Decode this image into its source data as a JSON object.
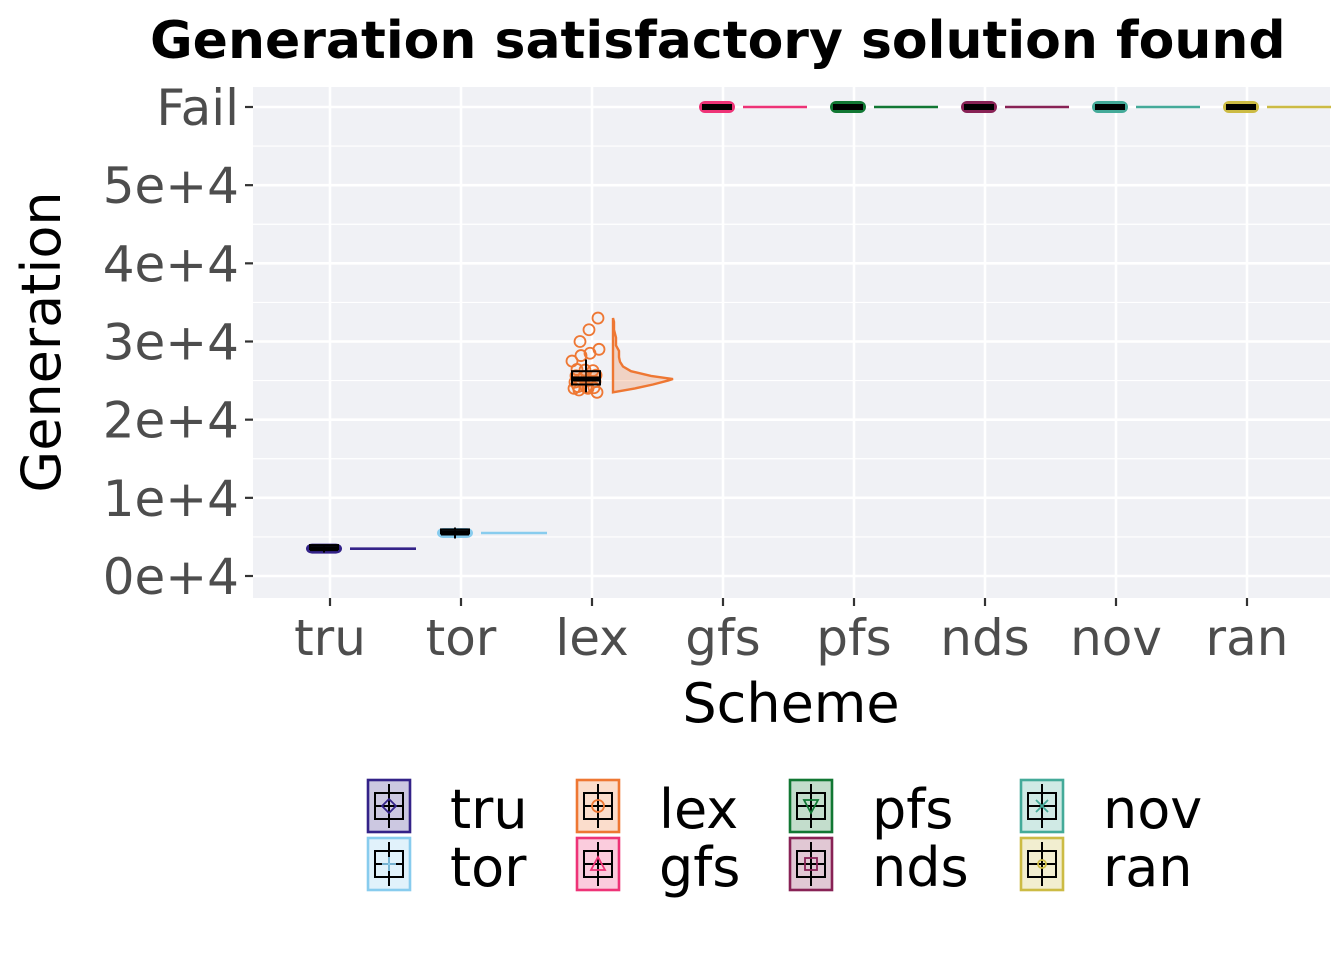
{
  "chart_data": {
    "type": "box",
    "title": "Generation satisfactory solution found",
    "xlabel": "Scheme",
    "ylabel": "Generation",
    "categories": [
      "tru",
      "tor",
      "lex",
      "gfs",
      "pfs",
      "nds",
      "nov",
      "ran"
    ],
    "y_ticks": [
      {
        "value": 0,
        "label": "0e+4"
      },
      {
        "value": 10000,
        "label": "1e+4"
      },
      {
        "value": 20000,
        "label": "2e+4"
      },
      {
        "value": 30000,
        "label": "3e+4"
      },
      {
        "value": 40000,
        "label": "4e+4"
      },
      {
        "value": 50000,
        "label": "5e+4"
      },
      {
        "value": 60000,
        "label": "Fail"
      }
    ],
    "ylim": [
      -3000,
      62500
    ],
    "grid": true,
    "legend_position": "bottom",
    "series": [
      {
        "name": "tru",
        "color": "#332288",
        "shape": "diamond",
        "q1": 3300,
        "median": 3500,
        "q3": 3700,
        "whisker_low": 3000,
        "whisker_high": 3900,
        "outliers": [],
        "density_peak": 3500
      },
      {
        "name": "tor",
        "color": "#88CCEE",
        "shape": "plus",
        "q1": 5300,
        "median": 5500,
        "q3": 5700,
        "whisker_low": 4800,
        "whisker_high": 6200,
        "outliers": [],
        "density_peak": 5500
      },
      {
        "name": "lex",
        "color": "#EE7733",
        "shape": "circle",
        "q1": 24500,
        "median": 25200,
        "q3": 26200,
        "whisker_low": 23500,
        "whisker_high": 27700,
        "outliers": [
          27500,
          28200,
          28500,
          29000,
          30000,
          31500,
          33000,
          23800,
          24000
        ],
        "density_peak": 25200
      },
      {
        "name": "gfs",
        "color": "#EE3377",
        "shape": "triangle-up",
        "q1": 60000,
        "median": 60000,
        "q3": 60000,
        "whisker_low": 60000,
        "whisker_high": 60000,
        "outliers": [],
        "density_peak": 60000
      },
      {
        "name": "pfs",
        "color": "#117733",
        "shape": "triangle-down",
        "q1": 60000,
        "median": 60000,
        "q3": 60000,
        "whisker_low": 60000,
        "whisker_high": 60000,
        "outliers": [],
        "density_peak": 60000
      },
      {
        "name": "nds",
        "color": "#882255",
        "shape": "square",
        "q1": 60000,
        "median": 60000,
        "q3": 60000,
        "whisker_low": 60000,
        "whisker_high": 60000,
        "outliers": [],
        "density_peak": 60000
      },
      {
        "name": "nov",
        "color": "#44AA99",
        "shape": "cross",
        "q1": 60000,
        "median": 60000,
        "q3": 60000,
        "whisker_low": 60000,
        "whisker_high": 60000,
        "outliers": [],
        "density_peak": 60000
      },
      {
        "name": "ran",
        "color": "#CCBB44",
        "shape": "dot",
        "q1": 60000,
        "median": 60000,
        "q3": 60000,
        "whisker_low": 60000,
        "whisker_high": 60000,
        "outliers": [],
        "density_peak": 60000
      }
    ],
    "legend": [
      "tru",
      "lex",
      "pfs",
      "nov",
      "tor",
      "gfs",
      "nds",
      "ran"
    ]
  }
}
